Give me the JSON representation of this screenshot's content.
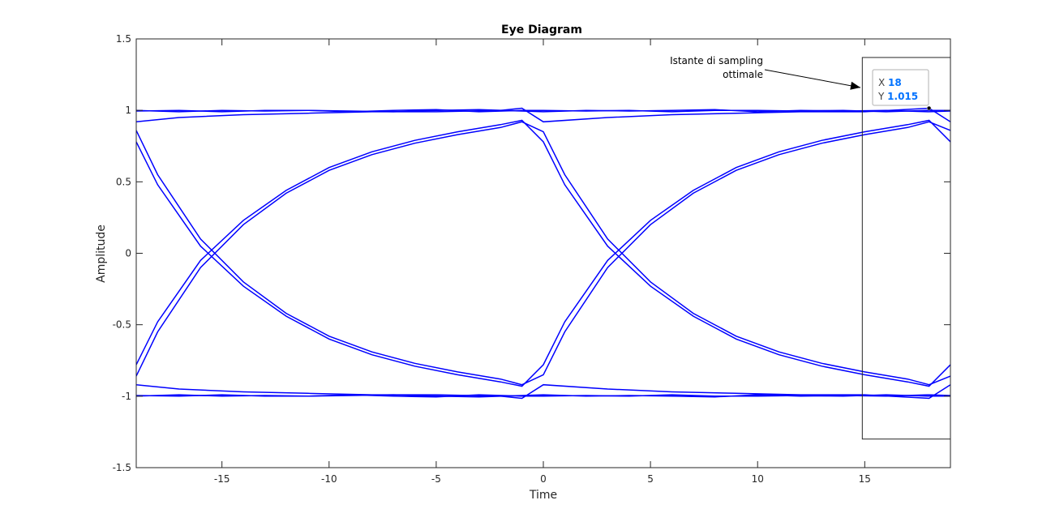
{
  "chart_data": {
    "type": "line",
    "title": "Eye Diagram",
    "xlabel": "Time",
    "ylabel": "Amplitude",
    "xlim": [
      -19,
      19
    ],
    "ylim": [
      -1.5,
      1.5
    ],
    "xticks": [
      -15,
      -10,
      -5,
      0,
      5,
      10,
      15
    ],
    "yticks": [
      1.5,
      1,
      0.5,
      0,
      -0.5,
      -1,
      -1.5
    ],
    "grid": false,
    "line_color": "#0000ff",
    "series": [
      {
        "x": [
          -19,
          -18,
          -16,
          -14,
          -12,
          -10,
          -8,
          -6,
          -4,
          -2,
          -1,
          0,
          1,
          3,
          5,
          7,
          9,
          11,
          13,
          15,
          17,
          18,
          19
        ],
        "y": [
          0.86,
          0.55,
          0.1,
          -0.2,
          -0.42,
          -0.58,
          -0.69,
          -0.77,
          -0.83,
          -0.88,
          -0.92,
          -0.85,
          -0.55,
          -0.1,
          0.2,
          0.42,
          0.58,
          0.69,
          0.77,
          0.83,
          0.88,
          0.92,
          0.86
        ]
      },
      {
        "x": [
          -19,
          -18,
          -16,
          -14,
          -12,
          -10,
          -8,
          -6,
          -4,
          -2,
          -1,
          0,
          1,
          3,
          5,
          7,
          9,
          11,
          13,
          15,
          17,
          18,
          19
        ],
        "y": [
          0.78,
          0.48,
          0.05,
          -0.23,
          -0.44,
          -0.6,
          -0.71,
          -0.79,
          -0.85,
          -0.9,
          -0.93,
          -0.78,
          -0.48,
          -0.05,
          0.23,
          0.44,
          0.6,
          0.71,
          0.79,
          0.85,
          0.9,
          0.93,
          0.78
        ]
      },
      {
        "x": [
          -19,
          -18,
          -16,
          -14,
          -12,
          -10,
          -8,
          -6,
          -4,
          -2,
          -1,
          0,
          1,
          3,
          5,
          7,
          9,
          11,
          13,
          15,
          17,
          18,
          19
        ],
        "y": [
          -0.86,
          -0.55,
          -0.1,
          0.2,
          0.42,
          0.58,
          0.69,
          0.77,
          0.83,
          0.88,
          0.92,
          0.85,
          0.55,
          0.1,
          -0.2,
          -0.42,
          -0.58,
          -0.69,
          -0.77,
          -0.83,
          -0.88,
          -0.92,
          -0.86
        ]
      },
      {
        "x": [
          -19,
          -18,
          -16,
          -14,
          -12,
          -10,
          -8,
          -6,
          -4,
          -2,
          -1,
          0,
          1,
          3,
          5,
          7,
          9,
          11,
          13,
          15,
          17,
          18,
          19
        ],
        "y": [
          -0.78,
          -0.48,
          -0.05,
          0.23,
          0.44,
          0.6,
          0.71,
          0.79,
          0.85,
          0.9,
          0.93,
          0.78,
          0.48,
          0.05,
          -0.23,
          -0.44,
          -0.6,
          -0.71,
          -0.79,
          -0.85,
          -0.9,
          -0.93,
          -0.78
        ]
      },
      {
        "x": [
          -19,
          -17,
          -14,
          -11,
          -8,
          -5,
          -2,
          -1,
          0,
          3,
          6,
          9,
          12,
          15,
          18,
          19
        ],
        "y": [
          0.92,
          0.95,
          0.97,
          0.98,
          0.99,
          0.99,
          1.0,
          1.015,
          0.92,
          0.95,
          0.97,
          0.98,
          0.99,
          0.99,
          1.015,
          0.92
        ]
      },
      {
        "x": [
          -19,
          -17,
          -14,
          -11,
          -8,
          -5,
          -2,
          -1,
          0,
          3,
          6,
          9,
          12,
          15,
          18,
          19
        ],
        "y": [
          -0.92,
          -0.95,
          -0.97,
          -0.98,
          -0.99,
          -0.99,
          -1.0,
          -1.015,
          -0.92,
          -0.95,
          -0.97,
          -0.98,
          -0.99,
          -0.99,
          -1.015,
          -0.92
        ]
      },
      {
        "x": [
          -19,
          -17,
          -15,
          -13,
          -11,
          -9,
          -7,
          -5,
          -3,
          -1,
          0,
          2,
          4,
          6,
          8,
          10,
          12,
          14,
          16,
          18,
          19
        ],
        "y": [
          1.0,
          0.99,
          1.0,
          0.995,
          1.0,
          0.99,
          1.0,
          1.005,
          0.99,
          1.0,
          1.0,
          0.995,
          1.0,
          0.99,
          1.0,
          1.0,
          0.995,
          1.0,
          0.99,
          1.0,
          1.0
        ]
      },
      {
        "x": [
          -19,
          -17,
          -15,
          -13,
          -11,
          -9,
          -7,
          -5,
          -3,
          -1,
          0,
          2,
          4,
          6,
          8,
          10,
          12,
          14,
          16,
          18,
          19
        ],
        "y": [
          0.995,
          1.0,
          0.99,
          1.0,
          1.0,
          0.995,
          0.99,
          1.0,
          1.005,
          0.995,
          0.99,
          1.0,
          0.995,
          1.0,
          1.005,
          0.99,
          1.0,
          0.995,
          1.0,
          0.99,
          0.995
        ]
      },
      {
        "x": [
          -19,
          -17,
          -15,
          -13,
          -11,
          -9,
          -7,
          -5,
          -3,
          -1,
          0,
          2,
          4,
          6,
          8,
          10,
          12,
          14,
          16,
          18,
          19
        ],
        "y": [
          -1.0,
          -0.99,
          -1.0,
          -0.995,
          -1.0,
          -0.99,
          -1.0,
          -1.005,
          -0.99,
          -1.0,
          -1.0,
          -0.995,
          -1.0,
          -0.99,
          -1.0,
          -1.0,
          -0.995,
          -1.0,
          -0.99,
          -1.0,
          -1.0
        ]
      },
      {
        "x": [
          -19,
          -17,
          -15,
          -13,
          -11,
          -9,
          -7,
          -5,
          -3,
          -1,
          0,
          2,
          4,
          6,
          8,
          10,
          12,
          14,
          16,
          18,
          19
        ],
        "y": [
          -0.995,
          -1.0,
          -0.99,
          -1.0,
          -1.0,
          -0.995,
          -0.99,
          -1.0,
          -1.005,
          -0.995,
          -0.99,
          -1.0,
          -0.995,
          -1.0,
          -1.005,
          -0.99,
          -1.0,
          -0.995,
          -1.0,
          -0.99,
          -0.995
        ]
      }
    ],
    "annotation": {
      "text_lines": [
        "Istante di sampling",
        "ottimale"
      ],
      "box_x": [
        15,
        19
      ],
      "box_y": [
        -1.3,
        1.37
      ],
      "arrow_to": [
        14.8,
        1.16
      ]
    },
    "datatip": {
      "x_label": "X",
      "x_value": "18",
      "y_label": "Y",
      "y_value": "1.015",
      "point": [
        18,
        1.015
      ]
    }
  }
}
